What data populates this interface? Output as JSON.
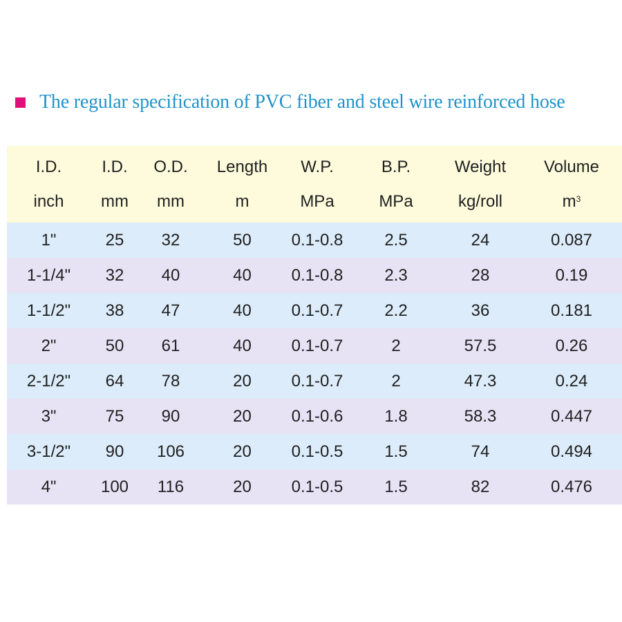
{
  "colors": {
    "bullet": "#e0107a",
    "title": "#1f93c9",
    "header_bg": "#fdfbdc",
    "row_odd_bg": "#dcecfa",
    "row_even_bg": "#e7e2f4"
  },
  "title": "The regular specification of PVC fiber and steel wire reinforced hose",
  "table": {
    "headers": [
      {
        "line1": "I.D.",
        "line2": "inch"
      },
      {
        "line1": "I.D.",
        "line2": "mm"
      },
      {
        "line1": "O.D.",
        "line2": "mm"
      },
      {
        "line1": "Length",
        "line2": "m"
      },
      {
        "line1": "W.P.",
        "line2": "MPa"
      },
      {
        "line1": "B.P.",
        "line2": "MPa"
      },
      {
        "line1": "Weight",
        "line2": "kg/roll"
      },
      {
        "line1": "Volume",
        "line2": "m",
        "sup": "3"
      }
    ],
    "rows": [
      [
        "1\"",
        "25",
        "32",
        "50",
        "0.1-0.8",
        "2.5",
        "24",
        "0.087"
      ],
      [
        "1-1/4\"",
        "32",
        "40",
        "40",
        "0.1-0.8",
        "2.3",
        "28",
        "0.19"
      ],
      [
        "1-1/2\"",
        "38",
        "47",
        "40",
        "0.1-0.7",
        "2.2",
        "36",
        "0.181"
      ],
      [
        "2\"",
        "50",
        "61",
        "40",
        "0.1-0.7",
        "2",
        "57.5",
        "0.26"
      ],
      [
        "2-1/2\"",
        "64",
        "78",
        "20",
        "0.1-0.7",
        "2",
        "47.3",
        "0.24"
      ],
      [
        "3\"",
        "75",
        "90",
        "20",
        "0.1-0.6",
        "1.8",
        "58.3",
        "0.447"
      ],
      [
        "3-1/2\"",
        "90",
        "106",
        "20",
        "0.1-0.5",
        "1.5",
        "74",
        "0.494"
      ],
      [
        "4\"",
        "100",
        "116",
        "20",
        "0.1-0.5",
        "1.5",
        "82",
        "0.476"
      ]
    ]
  }
}
